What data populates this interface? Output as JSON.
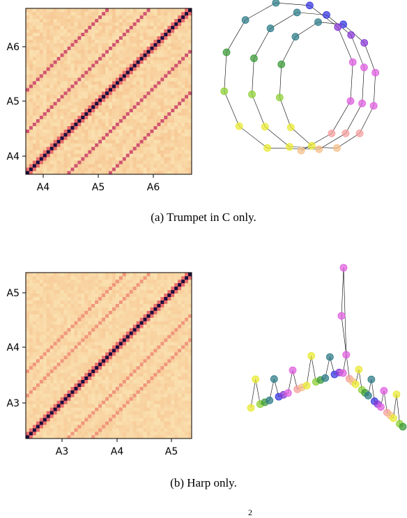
{
  "figures": [
    {
      "caption": "(a) Trumpet in C only.",
      "heatmap": {
        "x_ticks": [
          "A4",
          "A5",
          "A6"
        ],
        "y_ticks": [
          "A6",
          "A5",
          "A4"
        ]
      }
    },
    {
      "caption": "(b) Harp only.",
      "heatmap": {
        "x_ticks": [
          "A3",
          "A4",
          "A5"
        ],
        "y_ticks": [
          "A5",
          "A4",
          "A3"
        ]
      }
    }
  ],
  "page_number": "2",
  "colors": {
    "heat_low": "#fbe6b5",
    "heat_mid": "#e96b6b",
    "heat_high": "#1b0f3b",
    "pitch_chroma": [
      "#e9e935",
      "#8fd138",
      "#3d9b3a",
      "#2f7d8a",
      "#3a3ae0",
      "#8a3ad6",
      "#e060e0",
      "#f5a0a0",
      "#f5c08a"
    ]
  }
}
